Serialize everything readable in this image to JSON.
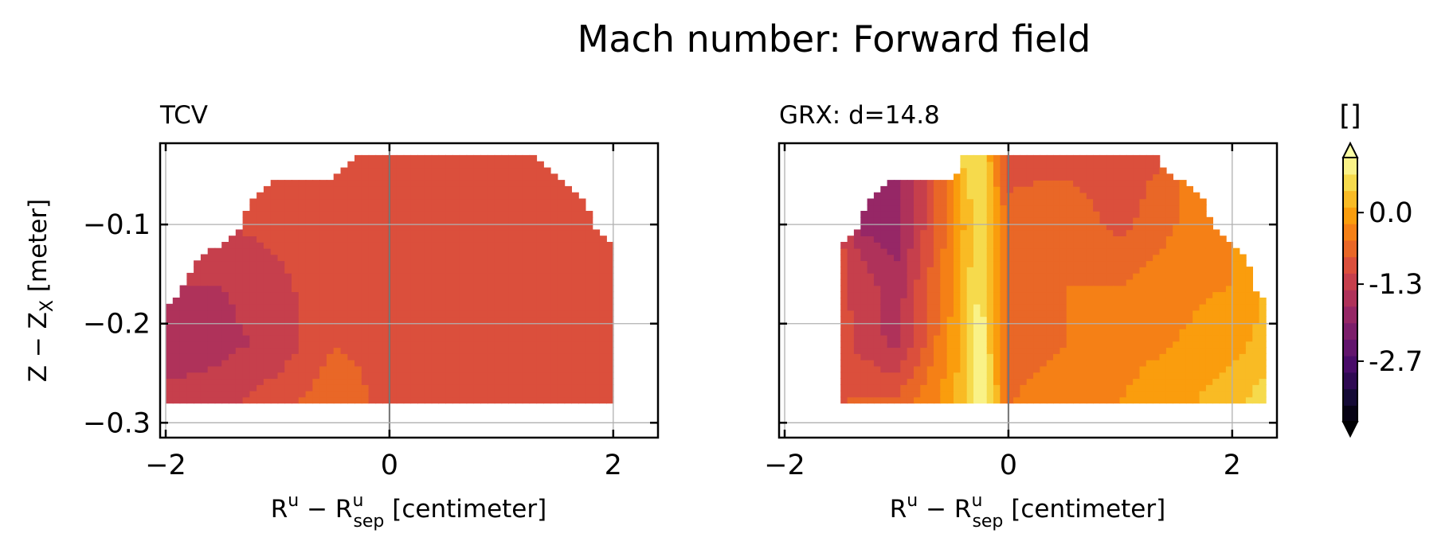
{
  "figure": {
    "title": "Mach number: Forward field",
    "colorbar_unit": "[]"
  },
  "chart_data": [
    {
      "type": "heatmap",
      "title": "TCV",
      "xlabel": "R^u - R^u_sep [centimeter]",
      "ylabel": "Z - Z_X [meter]",
      "xlim": [
        -2.05,
        2.4
      ],
      "ylim": [
        -0.315,
        -0.018
      ],
      "x_ticks": [
        "−2",
        "0",
        "2"
      ],
      "y_ticks": [
        "−0.1",
        "−0.2",
        "−0.3"
      ],
      "grid": true,
      "separatrix_x": 0,
      "field": {
        "description_levels": "Mach number mostly between -1.3 and -0.6",
        "x": [
          -2.0,
          -1.5,
          -1.0,
          -0.5,
          0.0,
          0.5,
          1.0,
          1.5,
          2.0
        ],
        "y": [
          -0.03,
          -0.1,
          -0.16,
          -0.22,
          -0.28
        ],
        "values": [
          [
            null,
            null,
            null,
            null,
            -0.9,
            -0.95,
            -1.0,
            null,
            null
          ],
          [
            null,
            null,
            -1.0,
            -0.95,
            -0.9,
            -0.95,
            -1.0,
            -0.95,
            null
          ],
          [
            null,
            -1.4,
            -1.2,
            -0.85,
            -0.9,
            -0.9,
            -0.95,
            -0.95,
            -0.9
          ],
          [
            -1.7,
            -1.5,
            -1.3,
            -0.8,
            -0.9,
            -0.9,
            -0.9,
            -0.9,
            -0.9
          ],
          [
            -1.2,
            -1.2,
            -0.9,
            -0.6,
            -0.9,
            -0.9,
            -0.9,
            -0.9,
            -0.9
          ]
        ]
      }
    },
    {
      "type": "heatmap",
      "title": "GRX: d=14.8",
      "xlabel": "R^u - R^u_sep [centimeter]",
      "ylabel": "",
      "xlim": [
        -2.05,
        2.4
      ],
      "ylim": [
        -0.315,
        -0.018
      ],
      "x_ticks": [
        "−2",
        "0",
        "2"
      ],
      "y_ticks": [],
      "grid": true,
      "separatrix_x": 0,
      "field": {
        "x": [
          -1.5,
          -1.0,
          -0.5,
          -0.25,
          0.0,
          0.5,
          1.0,
          1.5,
          2.0,
          2.3
        ],
        "y": [
          -0.03,
          -0.1,
          -0.16,
          -0.22,
          -0.28
        ],
        "values": [
          [
            null,
            null,
            null,
            0.6,
            -0.9,
            -0.9,
            -0.95,
            null,
            null,
            null
          ],
          [
            null,
            -1.9,
            -0.3,
            0.7,
            -0.7,
            -0.6,
            -0.9,
            -0.5,
            null,
            null
          ],
          [
            -1.0,
            -1.6,
            -0.2,
            0.8,
            -0.6,
            -0.5,
            -0.5,
            -0.3,
            -0.2,
            null
          ],
          [
            -1.0,
            -1.5,
            -0.1,
            0.9,
            -0.6,
            -0.5,
            -0.3,
            -0.2,
            0.0,
            0.2
          ],
          [
            -0.8,
            -0.7,
            0.0,
            1.0,
            -0.5,
            -0.4,
            -0.2,
            0.0,
            0.3,
            0.6
          ]
        ]
      }
    }
  ],
  "colorbar": {
    "colormap": "inferno",
    "extend": "both",
    "min": -3.8,
    "max": 1.0,
    "ticks": [
      {
        "value": 0.0,
        "label": "0.0"
      },
      {
        "value": -1.3,
        "label": "-1.3"
      },
      {
        "value": -2.7,
        "label": "-2.7"
      }
    ],
    "levels": [
      -3.8,
      -3.5,
      -3.2,
      -2.9,
      -2.6,
      -2.3,
      -2.0,
      -1.7,
      -1.4,
      -1.1,
      -0.8,
      -0.5,
      -0.2,
      0.1,
      0.4,
      0.7,
      1.0
    ]
  }
}
